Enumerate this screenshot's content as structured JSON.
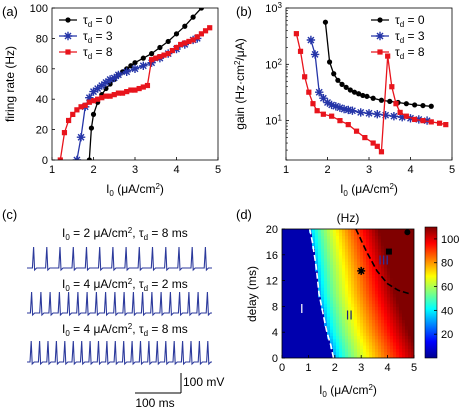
{
  "colors": {
    "black": "#000000",
    "blue": "#2535a8",
    "red": "#e8141c",
    "trace": "#2c3a9c"
  },
  "chart_data": [
    {
      "id": "a",
      "panel_label": "(a)",
      "type": "line",
      "ylabel": "firing rate (Hz)",
      "xlabel_parts": [
        "I",
        "0",
        " (",
        "μ",
        "A/cm",
        "2",
        ")"
      ],
      "xlim": [
        1,
        5
      ],
      "ylim": [
        0,
        100
      ],
      "xticks": [
        1,
        2,
        3,
        4,
        5
      ],
      "yticks": [
        0,
        20,
        40,
        60,
        80,
        100
      ],
      "legend_position": "top-left",
      "series": [
        {
          "name": "τd = 0",
          "legend": [
            "τ",
            "d",
            " = 0"
          ],
          "color": "#000000",
          "marker": "circle",
          "x": [
            1.9,
            1.95,
            2.0,
            2.1,
            2.2,
            2.3,
            2.4,
            2.5,
            2.6,
            2.7,
            2.8,
            2.9,
            3.0,
            3.2,
            3.4,
            3.6,
            3.8,
            4.0,
            4.2,
            4.4,
            4.6
          ],
          "y": [
            0,
            21,
            30,
            38,
            43,
            47,
            50,
            53,
            56,
            58,
            60,
            62,
            64,
            67,
            70,
            74,
            78,
            83,
            88,
            94,
            100
          ]
        },
        {
          "name": "τd = 3",
          "legend": [
            "τ",
            "d",
            " = 3"
          ],
          "color": "#2535a8",
          "marker": "star",
          "x": [
            1.6,
            1.7,
            1.8,
            1.9,
            2.0,
            2.1,
            2.2,
            2.3,
            2.4,
            2.5,
            2.6,
            2.8,
            3.0,
            3.2,
            3.4,
            3.6,
            3.8,
            4.0,
            4.2,
            4.4,
            4.5
          ],
          "y": [
            0,
            15,
            35,
            41,
            45,
            47,
            49,
            51,
            53,
            54,
            56,
            58,
            60,
            62,
            64,
            67,
            70,
            73,
            76,
            79,
            80
          ]
        },
        {
          "name": "τd = 8",
          "legend": [
            "τ",
            "d",
            " = 8"
          ],
          "color": "#e8141c",
          "marker": "square",
          "x": [
            1.2,
            1.3,
            1.4,
            1.5,
            1.6,
            1.7,
            1.8,
            1.9,
            2.0,
            2.1,
            2.2,
            2.3,
            2.4,
            2.5,
            2.6,
            2.7,
            2.8,
            2.9,
            3.0,
            3.1,
            3.2,
            3.3,
            3.4,
            3.5,
            3.6,
            3.7,
            3.8,
            3.9,
            4.0,
            4.1,
            4.2,
            4.3,
            4.4,
            4.5,
            4.6,
            4.7,
            4.8
          ],
          "y": [
            0,
            18,
            26,
            30,
            33,
            35,
            36,
            38,
            39,
            40,
            41,
            42,
            42,
            43,
            44,
            44,
            45,
            46,
            46,
            47,
            48,
            49,
            66,
            67,
            68,
            69,
            70,
            72,
            74,
            76,
            77,
            78,
            79,
            81,
            83,
            85,
            87
          ]
        }
      ]
    },
    {
      "id": "b",
      "panel_label": "(b)",
      "type": "line",
      "ylabel": "gain (Hz·cm²/μA)",
      "ylabel_parts": [
        "gain (Hz·cm",
        "2",
        "/",
        "μ",
        "A)"
      ],
      "xlabel_parts": [
        "I",
        "0",
        " (",
        "μ",
        "A/cm",
        "2",
        ")"
      ],
      "xlim": [
        1,
        5
      ],
      "ylim": [
        2,
        1000
      ],
      "yscale": "log",
      "xticks": [
        1,
        2,
        3,
        4,
        5
      ],
      "yticks": [
        10,
        100,
        1000
      ],
      "ytick_labels": [
        [
          "10",
          "1"
        ],
        [
          "10",
          "2"
        ],
        [
          "10",
          "3"
        ]
      ],
      "legend_position": "top-right",
      "series": [
        {
          "name": "τd = 0",
          "legend": [
            "τ",
            "d",
            " = 0"
          ],
          "color": "#000000",
          "marker": "circle",
          "x": [
            1.95,
            2.05,
            2.15,
            2.25,
            2.35,
            2.45,
            2.55,
            2.65,
            2.75,
            2.85,
            2.95,
            3.1,
            3.3,
            3.5,
            3.7,
            3.9,
            4.1,
            4.3,
            4.5
          ],
          "y": [
            560,
            110,
            68,
            52,
            44,
            39,
            35,
            32,
            30,
            28,
            27,
            25,
            23,
            22,
            21,
            20,
            19,
            18.5,
            18
          ]
        },
        {
          "name": "τd = 3",
          "legend": [
            "τ",
            "d",
            " = 3"
          ],
          "color": "#2535a8",
          "marker": "star",
          "x": [
            1.6,
            1.7,
            1.8,
            1.9,
            2.0,
            2.1,
            2.2,
            2.3,
            2.4,
            2.5,
            2.6,
            2.8,
            3.0,
            3.2,
            3.4,
            3.6,
            3.8,
            4.0,
            4.2,
            4.4
          ],
          "y": [
            270,
            150,
            32,
            25,
            21,
            19,
            18,
            17,
            16,
            15.5,
            15,
            14,
            13.5,
            13,
            12.5,
            12,
            11.5,
            11,
            10.5,
            10
          ]
        },
        {
          "name": "τd = 8",
          "legend": [
            "τ",
            "d",
            " = 8"
          ],
          "color": "#e8141c",
          "marker": "square",
          "x": [
            1.25,
            1.35,
            1.45,
            1.55,
            1.65,
            1.75,
            1.9,
            2.1,
            2.3,
            2.5,
            2.7,
            2.9,
            3.1,
            3.2,
            3.3,
            3.45,
            3.55,
            3.65,
            3.75,
            3.9,
            4.1,
            4.3,
            4.5,
            4.7,
            4.85
          ],
          "y": [
            350,
            170,
            60,
            32,
            20,
            15,
            13,
            12,
            10,
            8.5,
            6.5,
            5,
            4,
            3.5,
            2.8,
            140,
            40,
            20,
            14,
            12,
            10.5,
            10,
            9.5,
            9,
            8.5
          ]
        }
      ]
    },
    {
      "id": "d",
      "panel_label": "(d)",
      "type": "heatmap",
      "title": "(Hz)",
      "ylabel": "delay (ms)",
      "xlabel_parts": [
        "I",
        "0",
        " (",
        "μ",
        "A/cm",
        "2",
        ")"
      ],
      "xlim": [
        0,
        5
      ],
      "ylim": [
        0,
        20
      ],
      "xticks": [
        0,
        1,
        2,
        3,
        4,
        5
      ],
      "yticks": [
        0,
        4,
        8,
        12,
        16,
        20
      ],
      "colorbar_ticks": [
        20,
        40,
        60,
        80,
        100
      ],
      "colorbar_range": [
        0,
        110
      ],
      "colormap": "jet",
      "boundary_I_II": {
        "x": [
          1.95,
          1.85,
          1.7,
          1.55,
          1.4,
          1.3,
          1.15,
          1.05
        ],
        "y": [
          0,
          2,
          4,
          7,
          10,
          14,
          18,
          20
        ]
      },
      "boundary_II_III": {
        "x": [
          2.8,
          3.2,
          3.6,
          4.0,
          4.4,
          4.8
        ],
        "y": [
          20,
          16.5,
          13.5,
          11.5,
          10.5,
          10.0
        ]
      },
      "region_labels": [
        {
          "text": "I",
          "x": 0.75,
          "y": 7,
          "color": "#ffffff"
        },
        {
          "text": "II",
          "x": 2.55,
          "y": 6,
          "color": "#1a237e"
        },
        {
          "text": "III",
          "x": 3.85,
          "y": 14.5,
          "color": "#2535a8"
        }
      ],
      "markers": [
        {
          "shape": "star",
          "x": 3.0,
          "y": 13.5
        },
        {
          "shape": "square",
          "x": 4.05,
          "y": 16.5
        },
        {
          "shape": "circle",
          "x": 4.75,
          "y": 19.5
        }
      ]
    }
  ],
  "panel_c": {
    "panel_label": "(c)",
    "traces": [
      {
        "label_parts": [
          "I",
          "0",
          " = 2 ",
          "μ",
          "A/cm",
          "2",
          ", ",
          "τ",
          "d",
          " = 8 ms"
        ],
        "spike_count": 14
      },
      {
        "label_parts": [
          "I",
          "0",
          " = 4 ",
          "μ",
          "A/cm",
          "2",
          ", ",
          "τ",
          "d",
          " = 2 ms"
        ],
        "spike_count": 20
      },
      {
        "label_parts": [
          "I",
          "0",
          " = 4 ",
          "μ",
          "A/cm",
          "2",
          ", ",
          "τ",
          "d",
          " = 8 ms"
        ],
        "spike_count": 22
      }
    ],
    "scale_bar_voltage": "100 mV",
    "scale_bar_time": "100 ms"
  }
}
